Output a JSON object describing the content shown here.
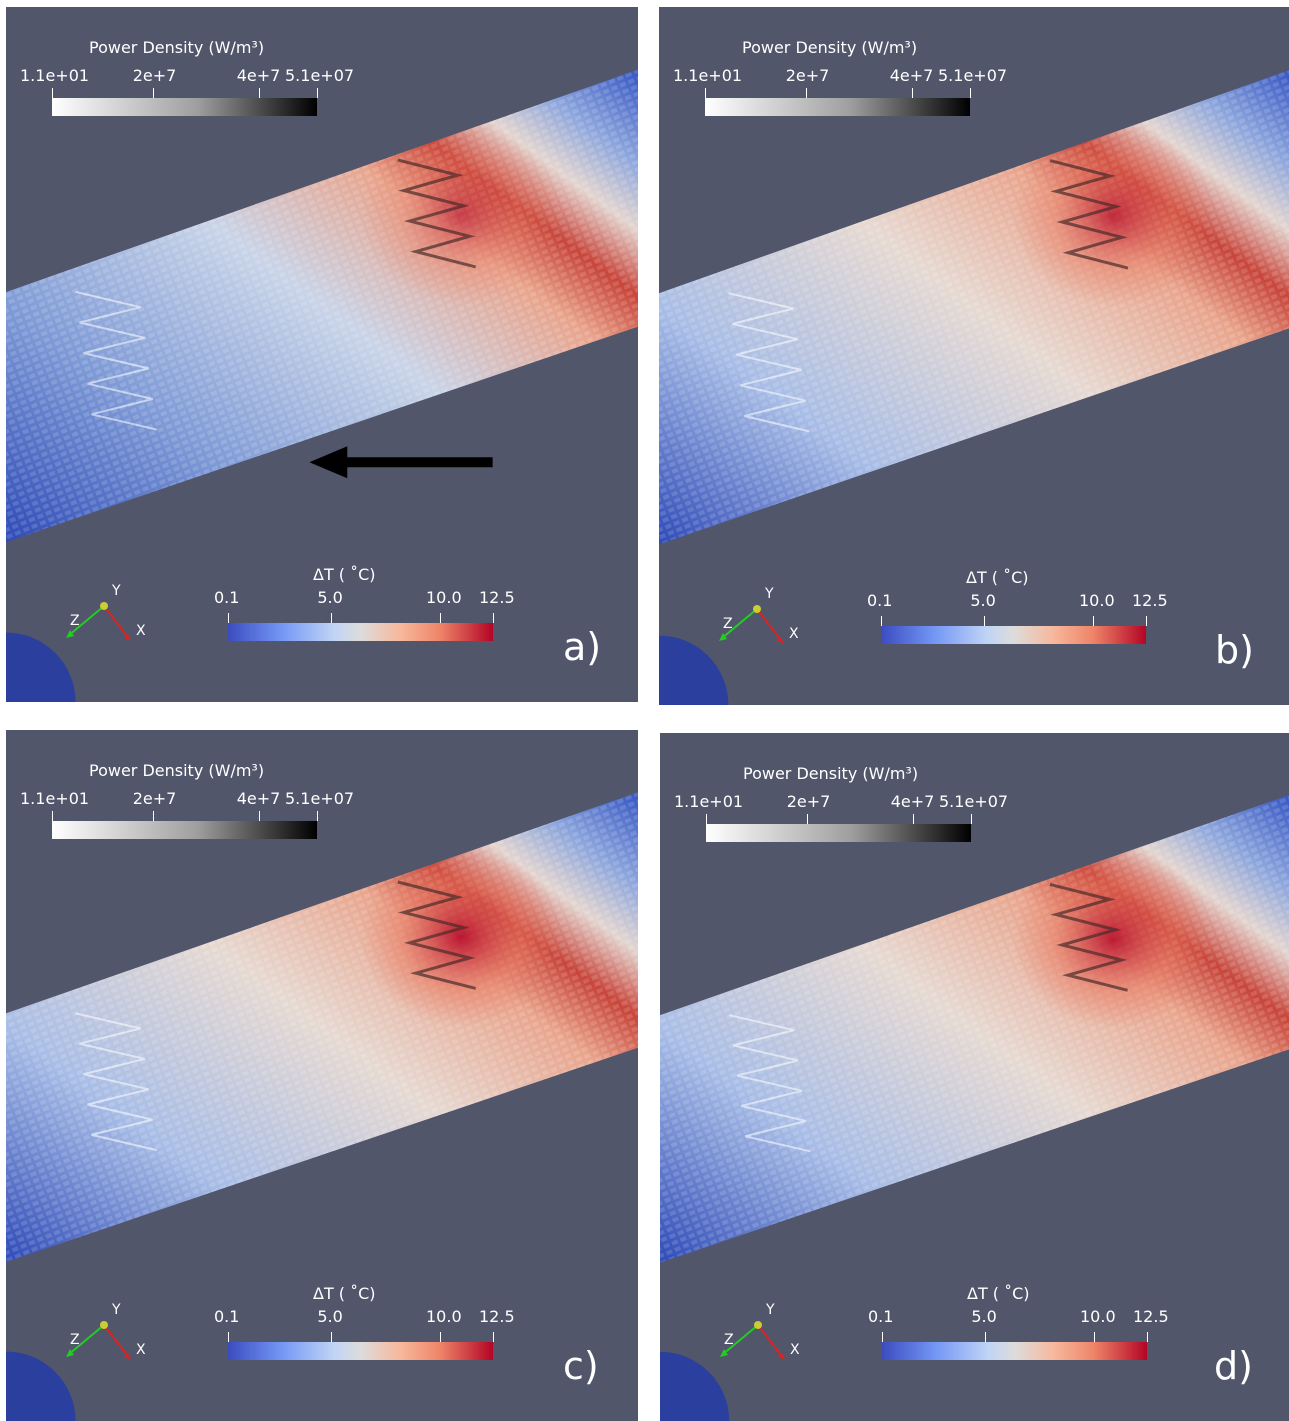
{
  "panels": [
    {
      "id": "a",
      "label": "a)",
      "has_arrow": true,
      "heat": 0.55,
      "power_density": {
        "title": "Power Density (W/m³)",
        "ticks": [
          "1.1e+01",
          "2e+7",
          "4e+7",
          "5.1e+07"
        ]
      },
      "delta_t": {
        "title": "ΔT ( ˚C)",
        "ticks": [
          "0.1",
          "5.0",
          "10.0",
          "12.5"
        ]
      },
      "axes": {
        "x": "X",
        "y": "Y",
        "z": "Z"
      }
    },
    {
      "id": "b",
      "label": "b)",
      "has_arrow": false,
      "heat": 0.75,
      "power_density": {
        "title": "Power Density (W/m³)",
        "ticks": [
          "1.1e+01",
          "2e+7",
          "4e+7",
          "5.1e+07"
        ]
      },
      "delta_t": {
        "title": "ΔT ( ˚C)",
        "ticks": [
          "0.1",
          "5.0",
          "10.0",
          "12.5"
        ]
      },
      "axes": {
        "x": "X",
        "y": "Y",
        "z": "Z"
      }
    },
    {
      "id": "c",
      "label": "c)",
      "has_arrow": false,
      "heat": 0.95,
      "power_density": {
        "title": "Power Density (W/m³)",
        "ticks": [
          "1.1e+01",
          "2e+7",
          "4e+7",
          "5.1e+07"
        ]
      },
      "delta_t": {
        "title": "ΔT ( ˚C)",
        "ticks": [
          "0.1",
          "5.0",
          "10.0",
          "12.5"
        ]
      },
      "axes": {
        "x": "X",
        "y": "Y",
        "z": "Z"
      }
    },
    {
      "id": "d",
      "label": "d)",
      "has_arrow": false,
      "heat": 0.9,
      "power_density": {
        "title": "Power Density (W/m³)",
        "ticks": [
          "1.1e+01",
          "2e+7",
          "4e+7",
          "5.1e+07"
        ]
      },
      "delta_t": {
        "title": "ΔT ( ˚C)",
        "ticks": [
          "0.1",
          "5.0",
          "10.0",
          "12.5"
        ]
      },
      "axes": {
        "x": "X",
        "y": "Y",
        "z": "Z"
      }
    }
  ],
  "colors": {
    "background": "#52566b",
    "cold": "#3b4cc0",
    "hot": "#b40426"
  }
}
